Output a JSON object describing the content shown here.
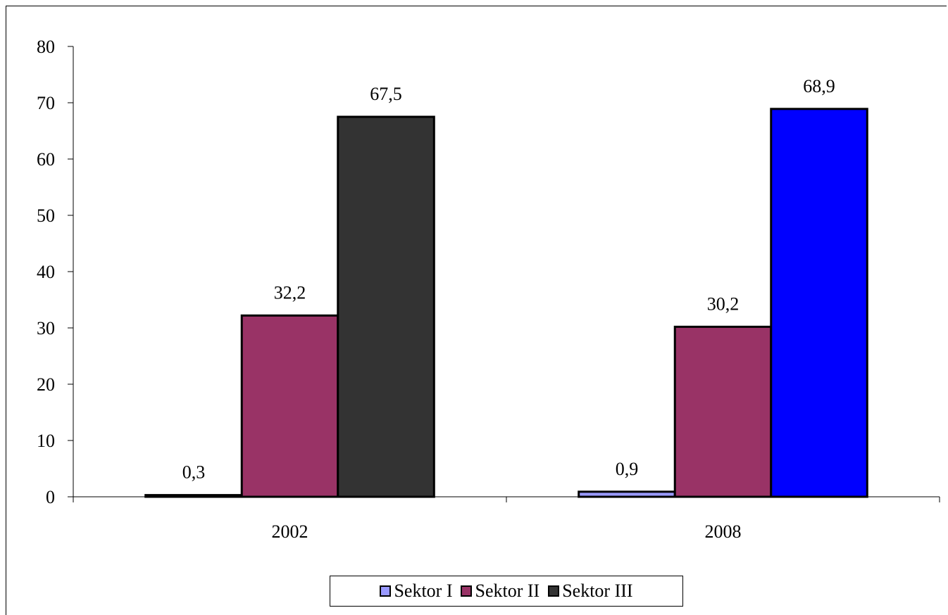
{
  "chart_data": {
    "type": "bar",
    "title": "",
    "xlabel": "",
    "ylabel": "",
    "categories": [
      "2002",
      "2008"
    ],
    "series": [
      {
        "name": "Sektor I",
        "values": [
          0.3,
          0.9
        ],
        "labels": [
          "0,3",
          "0,9"
        ]
      },
      {
        "name": "Sektor II",
        "values": [
          32.2,
          30.2
        ],
        "labels": [
          "32,2",
          "30,2"
        ]
      },
      {
        "name": "Sektor III",
        "values": [
          67.5,
          68.9
        ],
        "labels": [
          "67,5",
          "68,9"
        ]
      }
    ],
    "bar_colors": [
      [
        "#9999ff",
        "#9999ff"
      ],
      [
        "#993366",
        "#993366"
      ],
      [
        "#333333",
        "#0000ff"
      ]
    ],
    "legend_colors": [
      "#9999ff",
      "#993366",
      "#333333"
    ],
    "ylim": [
      0,
      80
    ],
    "yticks": [
      0,
      10,
      20,
      30,
      40,
      50,
      60,
      70,
      80
    ],
    "grid": false,
    "legend_position": "bottom"
  }
}
